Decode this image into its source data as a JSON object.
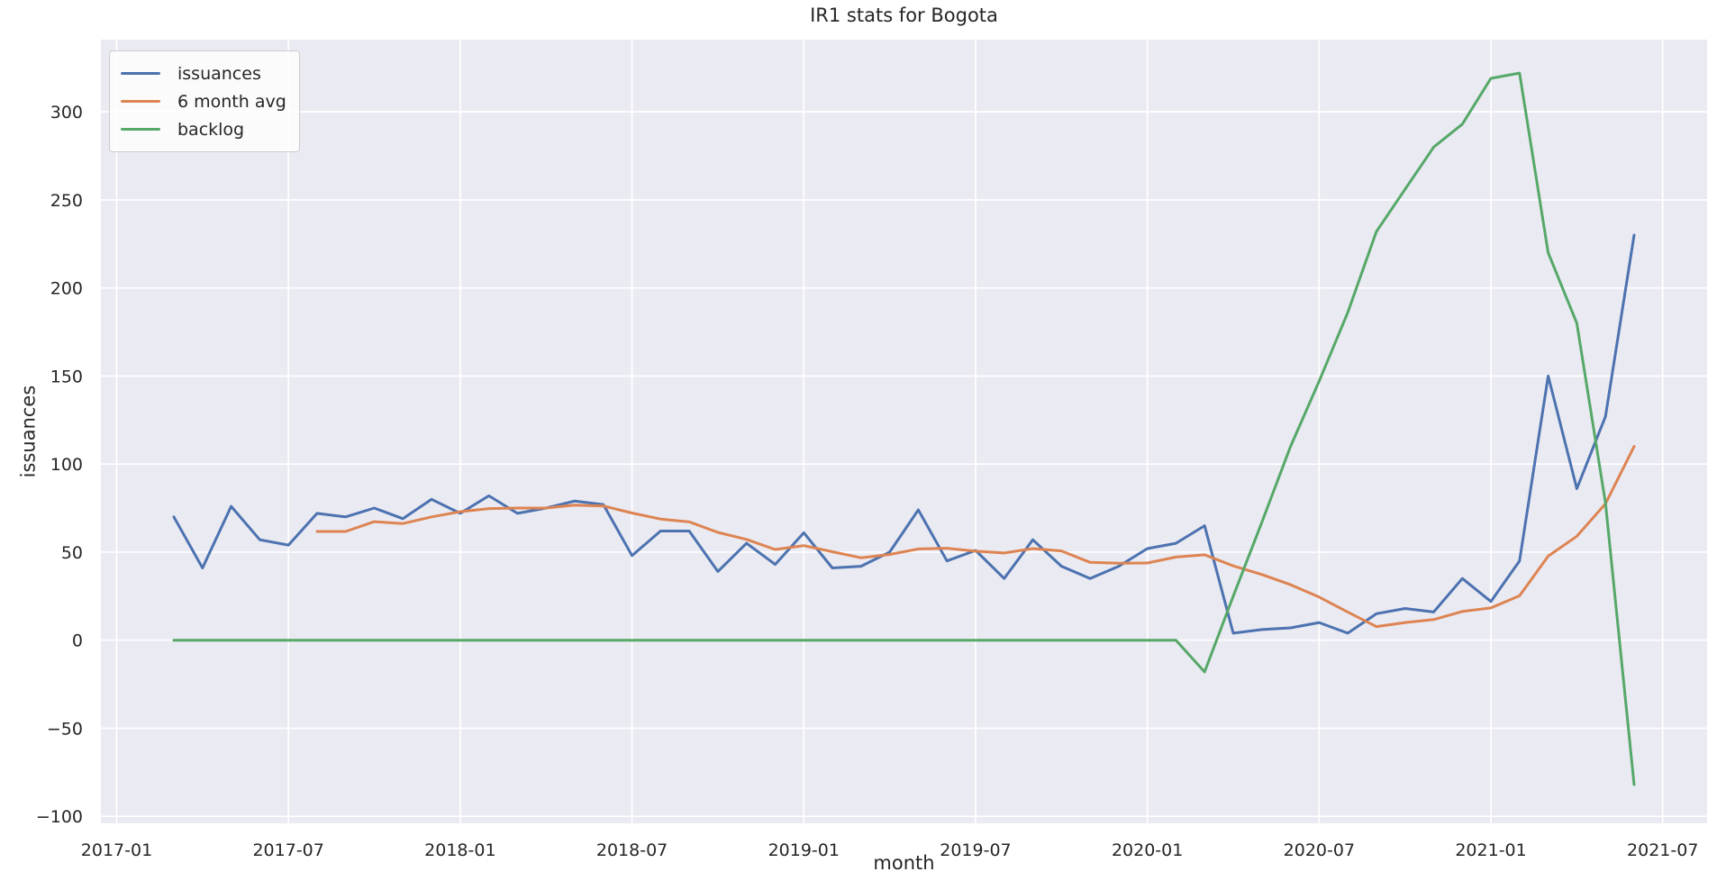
{
  "chart_data": {
    "type": "line",
    "title": "IR1 stats for Bogota",
    "xlabel": "month",
    "ylabel": "issuances",
    "grid": true,
    "legend_position": "upper left",
    "x_ticks": [
      "2017-01",
      "2017-07",
      "2018-01",
      "2018-07",
      "2019-01",
      "2019-07",
      "2020-01",
      "2020-07",
      "2021-01",
      "2021-07"
    ],
    "y_ticks": [
      -100,
      -50,
      0,
      50,
      100,
      150,
      200,
      250,
      300
    ],
    "xlim_months": [
      -0.55,
      55.55
    ],
    "ylim": [
      -104,
      341
    ],
    "colors": {
      "figure_background": "#ffffff",
      "plot_background": "#eaeaf2",
      "grid": "#ffffff",
      "text": "#262626",
      "legend_border": "#cccccc"
    },
    "series": [
      {
        "name": "issuances",
        "color": "#4C72B0",
        "x": [
          "2017-03",
          "2017-04",
          "2017-05",
          "2017-06",
          "2017-07",
          "2017-08",
          "2017-09",
          "2017-10",
          "2017-11",
          "2017-12",
          "2018-01",
          "2018-02",
          "2018-03",
          "2018-04",
          "2018-05",
          "2018-06",
          "2018-07",
          "2018-08",
          "2018-09",
          "2018-10",
          "2018-11",
          "2018-12",
          "2019-01",
          "2019-02",
          "2019-03",
          "2019-04",
          "2019-05",
          "2019-06",
          "2019-07",
          "2019-08",
          "2019-09",
          "2019-10",
          "2019-11",
          "2019-12",
          "2020-01",
          "2020-02",
          "2020-03",
          "2020-04",
          "2020-05",
          "2020-06",
          "2020-07",
          "2020-08",
          "2020-09",
          "2020-10",
          "2020-11",
          "2020-12",
          "2021-01",
          "2021-02",
          "2021-03",
          "2021-04",
          "2021-05",
          "2021-06"
        ],
        "values": [
          70,
          41,
          76,
          57,
          54,
          72,
          70,
          75,
          69,
          80,
          72,
          82,
          72,
          75,
          79,
          77,
          48,
          62,
          62,
          39,
          55,
          43,
          61,
          41,
          42,
          50,
          74,
          45,
          51,
          35,
          57,
          42,
          35,
          42,
          52,
          55,
          65,
          4,
          6,
          7,
          10,
          4,
          15,
          18,
          16,
          35,
          22,
          45,
          150,
          86,
          127,
          230
        ]
      },
      {
        "name": "6 month avg",
        "color": "#DD8452",
        "x": [
          "2017-08",
          "2017-09",
          "2017-10",
          "2017-11",
          "2017-12",
          "2018-01",
          "2018-02",
          "2018-03",
          "2018-04",
          "2018-05",
          "2018-06",
          "2018-07",
          "2018-08",
          "2018-09",
          "2018-10",
          "2018-11",
          "2018-12",
          "2019-01",
          "2019-02",
          "2019-03",
          "2019-04",
          "2019-05",
          "2019-06",
          "2019-07",
          "2019-08",
          "2019-09",
          "2019-10",
          "2019-11",
          "2019-12",
          "2020-01",
          "2020-02",
          "2020-03",
          "2020-04",
          "2020-05",
          "2020-06",
          "2020-07",
          "2020-08",
          "2020-09",
          "2020-10",
          "2020-11",
          "2020-12",
          "2021-01",
          "2021-02",
          "2021-03",
          "2021-04",
          "2021-05",
          "2021-06"
        ],
        "values": [
          61.7,
          61.7,
          67.3,
          66.2,
          70,
          73,
          74.7,
          75,
          75,
          76.7,
          76.2,
          72.2,
          68.8,
          67.2,
          61.2,
          57.2,
          51.5,
          53.7,
          50.2,
          46.8,
          48.7,
          51.8,
          52.2,
          50.5,
          49.5,
          52,
          50.7,
          44.2,
          43.7,
          43.8,
          47.2,
          48.5,
          42.2,
          37.3,
          31.5,
          24.5,
          16,
          7.7,
          10,
          11.7,
          16.3,
          18.3,
          25.2,
          47.7,
          59,
          77.5,
          110
        ]
      },
      {
        "name": "backlog",
        "color": "#55A868",
        "x": [
          "2017-03",
          "2017-04",
          "2017-05",
          "2017-06",
          "2017-07",
          "2017-08",
          "2017-09",
          "2017-10",
          "2017-11",
          "2017-12",
          "2018-01",
          "2018-02",
          "2018-03",
          "2018-04",
          "2018-05",
          "2018-06",
          "2018-07",
          "2018-08",
          "2018-09",
          "2018-10",
          "2018-11",
          "2018-12",
          "2019-01",
          "2019-02",
          "2019-03",
          "2019-04",
          "2019-05",
          "2019-06",
          "2019-07",
          "2019-08",
          "2019-09",
          "2019-10",
          "2019-11",
          "2019-12",
          "2020-01",
          "2020-02",
          "2020-03",
          "2020-04",
          "2020-05",
          "2020-06",
          "2020-07",
          "2020-08",
          "2020-09",
          "2020-10",
          "2020-11",
          "2020-12",
          "2021-01",
          "2021-02",
          "2021-03",
          "2021-04",
          "2021-05",
          "2021-06"
        ],
        "values": [
          0,
          0,
          0,
          0,
          0,
          0,
          0,
          0,
          0,
          0,
          0,
          0,
          0,
          0,
          0,
          0,
          0,
          0,
          0,
          0,
          0,
          0,
          0,
          0,
          0,
          0,
          0,
          0,
          0,
          0,
          0,
          0,
          0,
          0,
          0,
          0,
          -18,
          25,
          67,
          110,
          147,
          186,
          232,
          256,
          280,
          293,
          319,
          322,
          220,
          180,
          78,
          -82
        ]
      }
    ]
  }
}
